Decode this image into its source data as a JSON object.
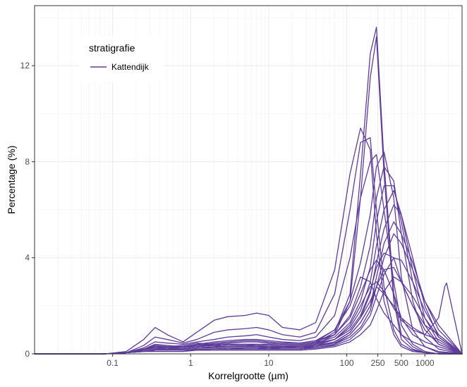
{
  "chart_data": {
    "type": "line",
    "xlabel": "Korrelgrootte (µm)",
    "ylabel": "Percentage (%)",
    "x_scale": "log10",
    "xlim": [
      0.01,
      3000
    ],
    "ylim": [
      0,
      14.5
    ],
    "x_ticks": [
      {
        "value": 0.1,
        "label": "0.1"
      },
      {
        "value": 1,
        "label": "1"
      },
      {
        "value": 10,
        "label": "10"
      },
      {
        "value": 100,
        "label": "100"
      },
      {
        "value": 250,
        "label": "250"
      },
      {
        "value": 500,
        "label": "500"
      },
      {
        "value": 1000,
        "label": "1000"
      }
    ],
    "y_ticks": [
      {
        "value": 0,
        "label": "0"
      },
      {
        "value": 4,
        "label": "4"
      },
      {
        "value": 8,
        "label": "8"
      },
      {
        "value": 12,
        "label": "12"
      }
    ],
    "grid": true,
    "line_color": "#5e3c99",
    "legend": {
      "title": "stratigrafie",
      "entries": [
        "Kattendijk"
      ],
      "placement": "top-left"
    },
    "series": [
      {
        "x": [
          0.01,
          0.04,
          0.08,
          0.15,
          0.25,
          0.35,
          0.5,
          0.8,
          1.2,
          2,
          3,
          5,
          7,
          10,
          15,
          25,
          40,
          70,
          110,
          150,
          200,
          240,
          300,
          400,
          500,
          700,
          1000,
          1500,
          3000
        ],
        "y": [
          0,
          0,
          0,
          0.05,
          0.2,
          0.35,
          0.3,
          0.35,
          0.45,
          0.4,
          0.35,
          0.4,
          0.35,
          0.3,
          0.3,
          0.35,
          0.45,
          0.9,
          2.5,
          7.5,
          12.5,
          13.6,
          8,
          2.5,
          0.8,
          0.3,
          0.05,
          0,
          0
        ]
      },
      {
        "x": [
          0.01,
          0.04,
          0.08,
          0.15,
          0.25,
          0.35,
          0.5,
          0.8,
          1.2,
          2,
          3,
          5,
          7,
          10,
          15,
          25,
          40,
          70,
          110,
          150,
          200,
          240,
          300,
          400,
          500,
          700,
          1000,
          1500,
          3000
        ],
        "y": [
          0,
          0,
          0,
          0.05,
          0.15,
          0.3,
          0.25,
          0.3,
          0.4,
          0.35,
          0.3,
          0.35,
          0.3,
          0.3,
          0.25,
          0.3,
          0.4,
          0.8,
          2.2,
          6.5,
          11.5,
          13.2,
          7.5,
          2.2,
          0.6,
          0.2,
          0.05,
          0,
          0
        ]
      },
      {
        "x": [
          0.01,
          0.04,
          0.08,
          0.15,
          0.25,
          0.35,
          0.5,
          0.8,
          1.2,
          2,
          3,
          5,
          7,
          10,
          15,
          25,
          40,
          70,
          110,
          150,
          200,
          240,
          300,
          400,
          500,
          700,
          1000,
          1500,
          3000
        ],
        "y": [
          0,
          0,
          0,
          0.1,
          0.6,
          1.1,
          0.8,
          0.5,
          0.9,
          1.4,
          1.55,
          1.6,
          1.7,
          1.6,
          1.1,
          1.0,
          1.3,
          3.5,
          7.5,
          9.4,
          8.5,
          5.0,
          2.2,
          0.8,
          0.3,
          0.1,
          0.05,
          0,
          0
        ]
      },
      {
        "x": [
          0.01,
          0.04,
          0.08,
          0.15,
          0.25,
          0.35,
          0.5,
          0.8,
          1.2,
          2,
          3,
          5,
          7,
          10,
          15,
          25,
          40,
          70,
          110,
          150,
          200,
          240,
          300,
          400,
          500,
          700,
          1000,
          1500,
          3000
        ],
        "y": [
          0,
          0,
          0,
          0.05,
          0.35,
          0.7,
          0.6,
          0.45,
          0.6,
          0.9,
          1.0,
          1.05,
          1.1,
          1.0,
          0.8,
          0.7,
          0.9,
          2.5,
          6.0,
          8.8,
          9.0,
          6.0,
          2.8,
          1.0,
          0.4,
          0.15,
          0.05,
          0,
          0
        ]
      },
      {
        "x": [
          0.01,
          0.04,
          0.08,
          0.15,
          0.25,
          0.35,
          0.5,
          0.8,
          1.2,
          2,
          3,
          5,
          7,
          10,
          15,
          25,
          40,
          70,
          110,
          150,
          200,
          240,
          300,
          400,
          500,
          700,
          1000,
          1500,
          3000
        ],
        "y": [
          0,
          0,
          0,
          0.05,
          0.25,
          0.5,
          0.45,
          0.4,
          0.5,
          0.6,
          0.7,
          0.75,
          0.8,
          0.7,
          0.6,
          0.55,
          0.7,
          1.6,
          4.0,
          6.5,
          8.0,
          8.3,
          6.0,
          3.0,
          1.2,
          0.4,
          0.1,
          0,
          0
        ]
      },
      {
        "x": [
          0.01,
          0.04,
          0.08,
          0.15,
          0.25,
          0.35,
          0.5,
          0.8,
          1.2,
          2,
          3,
          5,
          7,
          10,
          15,
          25,
          40,
          70,
          110,
          150,
          200,
          240,
          300,
          400,
          500,
          700,
          1000,
          1500,
          3000
        ],
        "y": [
          0,
          0,
          0,
          0.05,
          0.2,
          0.4,
          0.35,
          0.3,
          0.4,
          0.5,
          0.55,
          0.6,
          0.6,
          0.55,
          0.5,
          0.45,
          0.55,
          1.0,
          2.2,
          3.8,
          5.8,
          7.8,
          8.4,
          6.5,
          3.2,
          1.0,
          0.3,
          0.05,
          0
        ]
      },
      {
        "x": [
          0.01,
          0.04,
          0.08,
          0.15,
          0.25,
          0.35,
          0.5,
          0.8,
          1.2,
          2,
          3,
          5,
          7,
          10,
          15,
          25,
          40,
          70,
          110,
          150,
          200,
          240,
          300,
          400,
          500,
          700,
          1000,
          1500,
          3000
        ],
        "y": [
          0,
          0,
          0,
          0.05,
          0.2,
          0.35,
          0.3,
          0.3,
          0.35,
          0.4,
          0.45,
          0.5,
          0.5,
          0.45,
          0.4,
          0.4,
          0.5,
          0.8,
          1.6,
          2.8,
          4.5,
          6.5,
          7.8,
          7.2,
          5.0,
          2.2,
          0.7,
          0.2,
          0
        ]
      },
      {
        "x": [
          0.01,
          0.04,
          0.08,
          0.15,
          0.25,
          0.35,
          0.5,
          0.8,
          1.2,
          2,
          3,
          5,
          7,
          10,
          15,
          25,
          40,
          70,
          110,
          150,
          200,
          240,
          300,
          400,
          500,
          700,
          1000,
          1500,
          3000
        ],
        "y": [
          0,
          0,
          0,
          0.05,
          0.15,
          0.3,
          0.25,
          0.25,
          0.3,
          0.35,
          0.4,
          0.4,
          0.4,
          0.4,
          0.35,
          0.35,
          0.45,
          0.7,
          1.3,
          2.2,
          3.6,
          5.5,
          7.0,
          7.0,
          5.5,
          3.0,
          1.2,
          0.4,
          0
        ]
      },
      {
        "x": [
          0.01,
          0.04,
          0.08,
          0.15,
          0.25,
          0.35,
          0.5,
          0.8,
          1.2,
          2,
          3,
          5,
          7,
          10,
          15,
          25,
          40,
          70,
          110,
          150,
          200,
          240,
          300,
          400,
          500,
          700,
          1000,
          1500,
          3000
        ],
        "y": [
          0,
          0,
          0,
          0.05,
          0.15,
          0.25,
          0.25,
          0.2,
          0.25,
          0.3,
          0.3,
          0.35,
          0.35,
          0.3,
          0.3,
          0.3,
          0.4,
          0.6,
          1.1,
          1.8,
          3.0,
          4.5,
          6.0,
          6.8,
          5.8,
          3.5,
          1.5,
          0.5,
          0
        ]
      },
      {
        "x": [
          0.01,
          0.04,
          0.08,
          0.15,
          0.25,
          0.35,
          0.5,
          0.8,
          1.2,
          2,
          3,
          5,
          7,
          10,
          15,
          25,
          40,
          70,
          110,
          150,
          200,
          240,
          300,
          400,
          500,
          700,
          1000,
          1500,
          3000
        ],
        "y": [
          0,
          0,
          0,
          0.05,
          0.1,
          0.2,
          0.2,
          0.2,
          0.25,
          0.25,
          0.3,
          0.3,
          0.3,
          0.3,
          0.25,
          0.25,
          0.35,
          0.5,
          0.9,
          1.5,
          2.5,
          3.8,
          5.2,
          6.2,
          5.8,
          4.0,
          2.0,
          0.7,
          0
        ]
      },
      {
        "x": [
          0.01,
          0.04,
          0.08,
          0.15,
          0.25,
          0.35,
          0.5,
          0.8,
          1.2,
          2,
          3,
          5,
          7,
          10,
          15,
          25,
          40,
          70,
          110,
          150,
          200,
          240,
          300,
          400,
          500,
          700,
          1000,
          1500,
          3000
        ],
        "y": [
          0,
          0,
          0,
          0.05,
          0.1,
          0.15,
          0.15,
          0.15,
          0.2,
          0.2,
          0.25,
          0.25,
          0.25,
          0.25,
          0.2,
          0.2,
          0.3,
          0.45,
          0.8,
          1.3,
          2.0,
          3.2,
          4.6,
          5.5,
          5.0,
          3.8,
          2.2,
          1.0,
          0
        ]
      },
      {
        "x": [
          0.01,
          0.04,
          0.08,
          0.15,
          0.25,
          0.35,
          0.5,
          0.8,
          1.2,
          2,
          3,
          5,
          7,
          10,
          15,
          25,
          40,
          70,
          110,
          150,
          200,
          240,
          300,
          400,
          500,
          700,
          1000,
          1500,
          3000
        ],
        "y": [
          0,
          0,
          0,
          0.05,
          0.1,
          0.15,
          0.15,
          0.15,
          0.15,
          0.2,
          0.2,
          0.2,
          0.2,
          0.2,
          0.2,
          0.2,
          0.25,
          0.4,
          0.7,
          1.1,
          1.8,
          2.8,
          4.0,
          5.0,
          4.6,
          3.5,
          2.2,
          1.2,
          0
        ]
      },
      {
        "x": [
          0.01,
          0.04,
          0.08,
          0.15,
          0.25,
          0.35,
          0.5,
          0.8,
          1.2,
          2,
          3,
          5,
          7,
          10,
          15,
          25,
          40,
          70,
          110,
          150,
          200,
          240,
          300,
          400,
          500,
          700,
          1000,
          1500,
          3000
        ],
        "y": [
          0,
          0,
          0,
          0.05,
          0.15,
          0.25,
          0.25,
          0.25,
          0.3,
          0.35,
          0.4,
          0.4,
          0.4,
          0.35,
          0.35,
          0.35,
          0.45,
          0.6,
          1.0,
          1.6,
          2.6,
          3.6,
          4.2,
          4.0,
          3.0,
          2.0,
          1.2,
          0.8,
          0
        ]
      },
      {
        "x": [
          0.01,
          0.04,
          0.08,
          0.15,
          0.25,
          0.35,
          0.5,
          0.8,
          1.2,
          2,
          3,
          5,
          7,
          10,
          15,
          25,
          40,
          70,
          110,
          150,
          200,
          240,
          300,
          400,
          500,
          700,
          1000,
          1500,
          3000
        ],
        "y": [
          0,
          0,
          0,
          0.05,
          0.2,
          0.35,
          0.3,
          0.3,
          0.35,
          0.45,
          0.5,
          0.55,
          0.55,
          0.5,
          0.45,
          0.45,
          0.55,
          0.8,
          1.5,
          2.5,
          3.5,
          3.9,
          3.5,
          2.5,
          1.5,
          0.8,
          0.5,
          0.3,
          0
        ]
      },
      {
        "x": [
          0.01,
          0.04,
          0.08,
          0.15,
          0.25,
          0.35,
          0.5,
          0.8,
          1.2,
          2,
          3,
          5,
          7,
          10,
          15,
          25,
          40,
          70,
          110,
          150,
          200,
          240,
          300,
          400,
          500,
          700,
          1000,
          1500,
          3000
        ],
        "y": [
          0,
          0,
          0,
          0.05,
          0.2,
          0.3,
          0.3,
          0.3,
          0.3,
          0.4,
          0.45,
          0.5,
          0.5,
          0.45,
          0.4,
          0.4,
          0.5,
          1.0,
          2.0,
          3.2,
          3.0,
          2.3,
          1.7,
          1.2,
          0.8,
          0.5,
          0.3,
          0.1,
          0
        ]
      },
      {
        "x": [
          0.01,
          0.04,
          0.08,
          0.15,
          0.25,
          0.35,
          0.5,
          0.8,
          1.2,
          2,
          3,
          5,
          7,
          10,
          15,
          25,
          40,
          70,
          110,
          150,
          200,
          240,
          300,
          400,
          500,
          700,
          1000,
          1500,
          1800,
          1900,
          3000
        ],
        "y": [
          0,
          0,
          0,
          0.05,
          0.15,
          0.25,
          0.2,
          0.2,
          0.25,
          0.3,
          0.3,
          0.3,
          0.3,
          0.3,
          0.3,
          0.3,
          0.35,
          0.6,
          1.2,
          2.0,
          2.8,
          3.0,
          2.6,
          1.9,
          1.4,
          1.0,
          0.8,
          1.5,
          2.8,
          2.95,
          0
        ]
      },
      {
        "x": [
          0.01,
          0.04,
          0.08,
          0.15,
          0.25,
          0.35,
          0.5,
          0.8,
          1.2,
          2,
          3,
          5,
          7,
          10,
          15,
          25,
          40,
          70,
          110,
          150,
          200,
          240,
          300,
          400,
          500,
          700,
          1000,
          1500,
          3000
        ],
        "y": [
          0,
          0,
          0,
          0.05,
          0.1,
          0.2,
          0.2,
          0.2,
          0.25,
          0.25,
          0.3,
          0.3,
          0.3,
          0.25,
          0.25,
          0.25,
          0.3,
          0.5,
          0.9,
          1.5,
          2.2,
          2.8,
          2.5,
          2.0,
          1.5,
          1.1,
          0.8,
          0.6,
          0
        ]
      },
      {
        "x": [
          0.01,
          0.04,
          0.08,
          0.15,
          0.25,
          0.35,
          0.5,
          0.8,
          1.2,
          2,
          3,
          5,
          7,
          10,
          15,
          25,
          40,
          70,
          110,
          150,
          200,
          240,
          300,
          400,
          500,
          700,
          1000,
          1500,
          3000
        ],
        "y": [
          0,
          0,
          0,
          0.05,
          0.1,
          0.15,
          0.15,
          0.15,
          0.2,
          0.2,
          0.2,
          0.25,
          0.25,
          0.2,
          0.2,
          0.2,
          0.25,
          0.4,
          0.8,
          1.3,
          2.0,
          2.8,
          3.5,
          3.6,
          3.0,
          2.0,
          1.0,
          0.4,
          0
        ]
      },
      {
        "x": [
          0.01,
          0.04,
          0.08,
          0.15,
          0.25,
          0.35,
          0.5,
          0.8,
          1.2,
          2,
          3,
          5,
          7,
          10,
          15,
          25,
          40,
          70,
          110,
          150,
          200,
          240,
          300,
          400,
          500,
          700,
          1000,
          1500,
          3000
        ],
        "y": [
          0,
          0,
          0,
          0.05,
          0.1,
          0.15,
          0.15,
          0.15,
          0.15,
          0.2,
          0.2,
          0.2,
          0.2,
          0.2,
          0.2,
          0.2,
          0.25,
          0.35,
          0.6,
          1.0,
          1.6,
          2.4,
          3.3,
          4.0,
          3.9,
          3.0,
          1.8,
          0.8,
          0
        ]
      },
      {
        "x": [
          0.01,
          0.04,
          0.08,
          0.15,
          0.25,
          0.35,
          0.5,
          0.8,
          1.2,
          2,
          3,
          5,
          7,
          10,
          15,
          25,
          40,
          70,
          110,
          150,
          200,
          240,
          300,
          400,
          500,
          700,
          1000,
          1500,
          3000
        ],
        "y": [
          0,
          0,
          0,
          0.05,
          0.1,
          0.1,
          0.1,
          0.1,
          0.15,
          0.15,
          0.15,
          0.15,
          0.15,
          0.15,
          0.15,
          0.15,
          0.2,
          0.3,
          0.5,
          0.8,
          1.2,
          1.8,
          2.6,
          3.2,
          3.0,
          2.4,
          1.5,
          0.7,
          0
        ]
      }
    ]
  }
}
